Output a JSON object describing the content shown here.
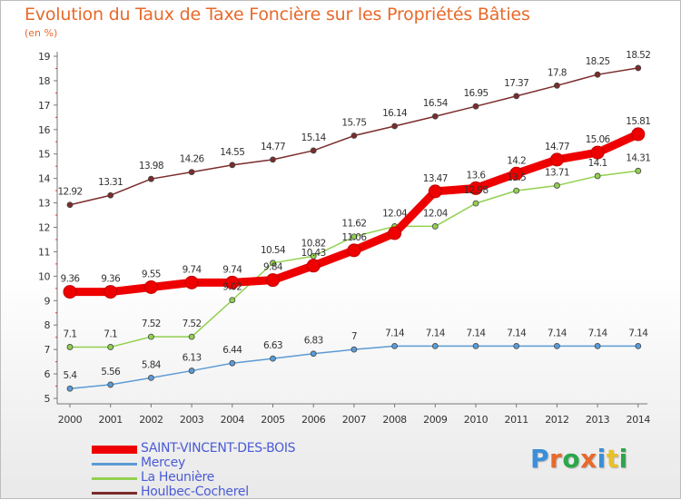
{
  "chart_data": {
    "type": "line",
    "title": "Evolution du Taux de Taxe Foncière sur les Propriétés Bâties",
    "subtitle": "(en %)",
    "x": [
      "2000",
      "2001",
      "2002",
      "2003",
      "2004",
      "2005",
      "2006",
      "2007",
      "2008",
      "2009",
      "2010",
      "2011",
      "2012",
      "2013",
      "2014"
    ],
    "ylim": [
      5,
      19
    ],
    "yticks": [
      "5",
      "6",
      "7",
      "8",
      "9",
      "10",
      "11",
      "12",
      "13",
      "14",
      "15",
      "16",
      "17",
      "18",
      "19"
    ],
    "grid": false,
    "legend_position": "bottom-left",
    "series": [
      {
        "name": "SAINT-VINCENT-DES-BOIS",
        "color": "#ee0000",
        "values": [
          9.36,
          9.36,
          9.55,
          9.74,
          9.74,
          9.84,
          10.43,
          11.06,
          11.76,
          13.47,
          13.6,
          14.2,
          14.77,
          15.06,
          15.81
        ],
        "labels": [
          "9.36",
          "9.36",
          "9.55",
          "9.74",
          "9.74",
          "9.84",
          "10.43",
          "11.06",
          "",
          "13.47",
          "13.6",
          "14.2",
          "14.77",
          "15.06",
          "15.81"
        ]
      },
      {
        "name": "Mercey",
        "color": "#5b9bd5",
        "values": [
          5.4,
          5.56,
          5.84,
          6.13,
          6.44,
          6.63,
          6.83,
          7,
          7.14,
          7.14,
          7.14,
          7.14,
          7.14,
          7.14,
          7.14
        ],
        "labels": [
          "5.4",
          "5.56",
          "5.84",
          "6.13",
          "6.44",
          "6.63",
          "6.83",
          "7",
          "7.14",
          "7.14",
          "7.14",
          "7.14",
          "7.14",
          "7.14",
          "7.14"
        ]
      },
      {
        "name": "La Heunière",
        "color": "#92d050",
        "values": [
          7.1,
          7.1,
          7.52,
          7.52,
          9.02,
          10.54,
          10.82,
          11.62,
          12.04,
          12.04,
          12.98,
          13.5,
          13.71,
          14.1,
          14.31
        ],
        "labels": [
          "7.1",
          "7.1",
          "7.52",
          "7.52",
          "9.02",
          "10.54",
          "10.82",
          "11.62",
          "12.04",
          "12.04",
          "12.98",
          "13.5",
          "13.71",
          "14.1",
          "14.31"
        ]
      },
      {
        "name": "Houlbec-Cocherel",
        "color": "#7b2c2c",
        "values": [
          12.92,
          13.31,
          13.98,
          14.26,
          14.55,
          14.77,
          15.14,
          15.75,
          16.14,
          16.54,
          16.95,
          17.37,
          17.8,
          18.25,
          18.52
        ],
        "labels": [
          "12.92",
          "13.31",
          "13.98",
          "14.26",
          "14.55",
          "14.77",
          "15.14",
          "15.75",
          "16.14",
          "16.54",
          "16.95",
          "17.37",
          "17.8",
          "18.25",
          "18.52"
        ]
      }
    ]
  },
  "logo": {
    "letters": [
      "P",
      "r",
      "o",
      "x",
      "i",
      "t",
      "i"
    ],
    "colors": [
      "#3a8fd8",
      "#e8692a",
      "#2aa84a",
      "#e8692a",
      "#3a8fd8",
      "#e8c12a",
      "#2aa84a"
    ]
  }
}
